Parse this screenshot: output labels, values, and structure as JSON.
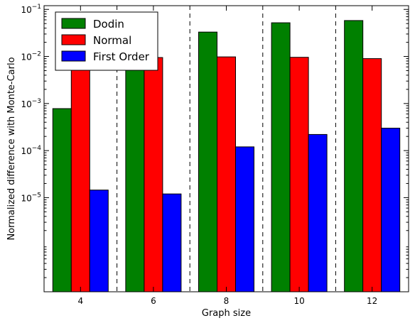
{
  "chart_data": {
    "type": "bar",
    "xlabel": "Graph size",
    "ylabel": "Normalized difference with Monte-Carlo",
    "yscale": "log",
    "ylim": [
      1e-07,
      0.12
    ],
    "categories": [
      "4",
      "6",
      "8",
      "10",
      "12"
    ],
    "y_ticks": [
      {
        "value": 1e-05,
        "base": "10",
        "exp": "−5"
      },
      {
        "value": 0.0001,
        "base": "10",
        "exp": "−4"
      },
      {
        "value": 0.001,
        "base": "10",
        "exp": "−3"
      },
      {
        "value": 0.01,
        "base": "10",
        "exp": "−2"
      },
      {
        "value": 0.1,
        "base": "10",
        "exp": "−1"
      }
    ],
    "series": [
      {
        "name": "Dodin",
        "color": "#008000",
        "values": [
          0.00078,
          0.008,
          0.033,
          0.052,
          0.058
        ]
      },
      {
        "name": "Normal",
        "color": "#ff0000",
        "values": [
          0.008,
          0.0095,
          0.0098,
          0.0096,
          0.009
        ]
      },
      {
        "name": "First Order",
        "color": "#0000ff",
        "values": [
          1.45e-05,
          1.2e-05,
          0.00012,
          0.00022,
          0.0003
        ]
      }
    ],
    "separators": "dashed vertical lines between groups",
    "legend_position": "top-left",
    "grid": false
  }
}
